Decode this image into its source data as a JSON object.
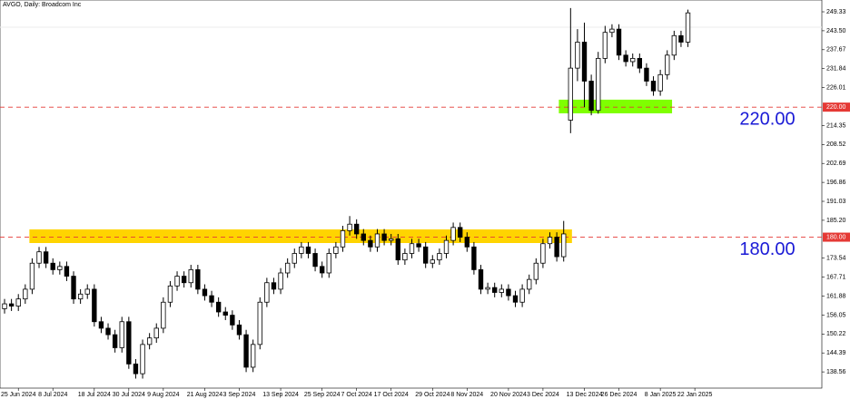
{
  "chart_data": {
    "type": "candlestick",
    "title": "AVGO, Daily:  Broadcom Inc",
    "open": [
      158,
      159.5,
      158.8,
      161,
      164,
      172,
      175.5,
      172,
      170,
      171,
      168,
      161,
      162.5,
      164,
      154,
      152,
      150,
      146,
      154,
      141,
      138,
      147,
      149,
      152,
      160,
      165,
      168,
      166,
      170,
      164,
      162,
      160,
      157,
      156,
      153,
      150,
      140,
      147,
      160,
      166,
      164,
      169,
      172,
      175,
      177,
      175,
      171,
      169,
      175,
      177,
      182,
      184,
      181,
      179,
      177,
      181,
      179,
      179.5,
      173,
      175,
      178,
      177,
      172,
      173,
      175,
      179,
      183,
      180,
      177,
      170,
      164,
      164.5,
      163,
      164,
      162,
      160,
      164,
      167,
      172,
      178,
      180,
      174,
      216,
      232,
      240,
      228,
      219,
      235,
      243,
      244,
      236,
      234,
      235,
      232,
      228,
      225,
      230,
      236,
      242,
      240
    ],
    "high": [
      161,
      161,
      162.5,
      165.5,
      173.5,
      177,
      177,
      173.5,
      172.5,
      172.5,
      169.5,
      164,
      165.5,
      165.5,
      155.5,
      153.5,
      151.5,
      155.5,
      155.5,
      142.5,
      148.5,
      150.5,
      153.5,
      161.5,
      166.5,
      169.5,
      169.5,
      171.5,
      171.5,
      165.5,
      163.5,
      161.5,
      158.5,
      157.5,
      154.5,
      151.5,
      148.5,
      161.5,
      167.5,
      167.5,
      170.5,
      173.5,
      176.5,
      178.5,
      178.5,
      176.5,
      172.5,
      176.5,
      178.5,
      183.5,
      186.5,
      185.5,
      182.5,
      180.5,
      182.5,
      182.5,
      181,
      181,
      176.5,
      179.5,
      179.5,
      178.5,
      174.5,
      176.5,
      180.5,
      184.5,
      184.5,
      181.5,
      178.5,
      171.5,
      166,
      166,
      165.5,
      165.5,
      163.5,
      165.5,
      168.5,
      173.5,
      179.5,
      181.5,
      181.5,
      185,
      250.5,
      244,
      246,
      230,
      237,
      245,
      245.5,
      245.5,
      237.5,
      236.5,
      236.5,
      233.5,
      229.5,
      231.5,
      237.5,
      243.5,
      243.5,
      250
    ],
    "low": [
      156.5,
      157.3,
      157.3,
      159.5,
      162.5,
      170.5,
      170.5,
      168.5,
      168.5,
      166.5,
      159.5,
      159.5,
      161,
      152.5,
      150.5,
      148.5,
      144.5,
      144.5,
      139.5,
      136.5,
      136.5,
      145.5,
      147.5,
      150.5,
      158.5,
      163.5,
      164.5,
      164.5,
      162.5,
      160.5,
      158.5,
      155.5,
      154.5,
      151.5,
      148.5,
      138.5,
      138.5,
      145.5,
      158.5,
      162.5,
      162.5,
      167.5,
      170.5,
      173.5,
      173.5,
      169.5,
      167.5,
      167.5,
      173.5,
      175.5,
      180.5,
      179.5,
      177.5,
      175.5,
      175.5,
      177.5,
      177.5,
      171.5,
      171.5,
      173.5,
      175.5,
      170.5,
      170.5,
      171.5,
      173.5,
      177.5,
      178.5,
      175.5,
      168.5,
      162.5,
      162.5,
      161.5,
      161.5,
      160.5,
      158.5,
      158.5,
      162.5,
      165.5,
      170.5,
      176.5,
      172.5,
      172.5,
      212,
      228,
      220,
      217.5,
      218,
      233.5,
      241.5,
      234.5,
      232.5,
      232.5,
      230.5,
      226.5,
      223.5,
      223.5,
      228.5,
      234.5,
      238.5,
      238.5
    ],
    "close": [
      159.5,
      158.8,
      161,
      164,
      172,
      175.5,
      172,
      170,
      171,
      168,
      161,
      162.5,
      164,
      154,
      152,
      150,
      146,
      154,
      141,
      138,
      147,
      149,
      152,
      160,
      165,
      168,
      166,
      170,
      164,
      162,
      160,
      157,
      156,
      153,
      150,
      140,
      147,
      160,
      166,
      164,
      169,
      172,
      175,
      177,
      175,
      171,
      169,
      175,
      177,
      182,
      184,
      181,
      179,
      177,
      181,
      179,
      179.5,
      173,
      175,
      178,
      177,
      172,
      173,
      175,
      179,
      183,
      180,
      177,
      170,
      164,
      164.5,
      163,
      164,
      162,
      160,
      164,
      167,
      172,
      178,
      180,
      174,
      181,
      232,
      240,
      228,
      219,
      235,
      243,
      244,
      236,
      234,
      235,
      232,
      228,
      225,
      230,
      236,
      242,
      240,
      249
    ],
    "up_color": "#ffffff",
    "down_color": "#000000",
    "wick_color": "#000000",
    "xlim": [
      -0.66,
      118.4
    ],
    "xticks": [
      {
        "value": 2,
        "label": "25 Jun 2024"
      },
      {
        "value": 7,
        "label": "8 Jul 2024"
      },
      {
        "value": 13,
        "label": "18 Jul 2024"
      },
      {
        "value": 18,
        "label": "30 Jul 2024"
      },
      {
        "value": 23,
        "label": "9 Aug 2024"
      },
      {
        "value": 29,
        "label": "21 Aug 2024"
      },
      {
        "value": 34,
        "label": "3 Sep 2024"
      },
      {
        "value": 40,
        "label": "13 Sep 2024"
      },
      {
        "value": 46,
        "label": "25 Sep 2024"
      },
      {
        "value": 51,
        "label": "7 Oct 2024"
      },
      {
        "value": 56,
        "label": "17 Oct 2024"
      },
      {
        "value": 62,
        "label": "29 Oct 2024"
      },
      {
        "value": 67,
        "label": "8 Nov 2024"
      },
      {
        "value": 73,
        "label": "20 Nov 2024"
      },
      {
        "value": 78,
        "label": "3 Dec 2024"
      },
      {
        "value": 84,
        "label": "13 Dec 2024"
      },
      {
        "value": 89,
        "label": "26 Dec 2024"
      },
      {
        "value": 95,
        "label": "8 Jan 2025"
      },
      {
        "value": 100,
        "label": "22 Jan 2025"
      }
    ],
    "ylim": [
      133.57,
      252.96
    ],
    "yticks": [
      249.33,
      {
        "value": 243.5,
        "label": "243.50"
      },
      237.67,
      231.84,
      226.01,
      214.35,
      208.52,
      202.69,
      196.86,
      191.03,
      {
        "value": 185.2,
        "label": "185.20"
      },
      173.54,
      167.71,
      161.88,
      156.05,
      150.22,
      144.39,
      138.56
    ],
    "levels": [
      {
        "value": 220,
        "label": "220.00",
        "color": "#e53935",
        "text_color": "#1a1ad6"
      },
      {
        "value": 180,
        "label": "180.00",
        "color": "#e53935",
        "text_color": "#1a1ad6"
      }
    ],
    "zones": [
      {
        "low": 218.1,
        "high": 222.3,
        "from": 80.3,
        "to": 96.7,
        "color": "#7fff00"
      },
      {
        "low": 178.2,
        "high": 182.4,
        "from": 3.6,
        "to": 82.2,
        "color": "#ffd400"
      }
    ]
  }
}
